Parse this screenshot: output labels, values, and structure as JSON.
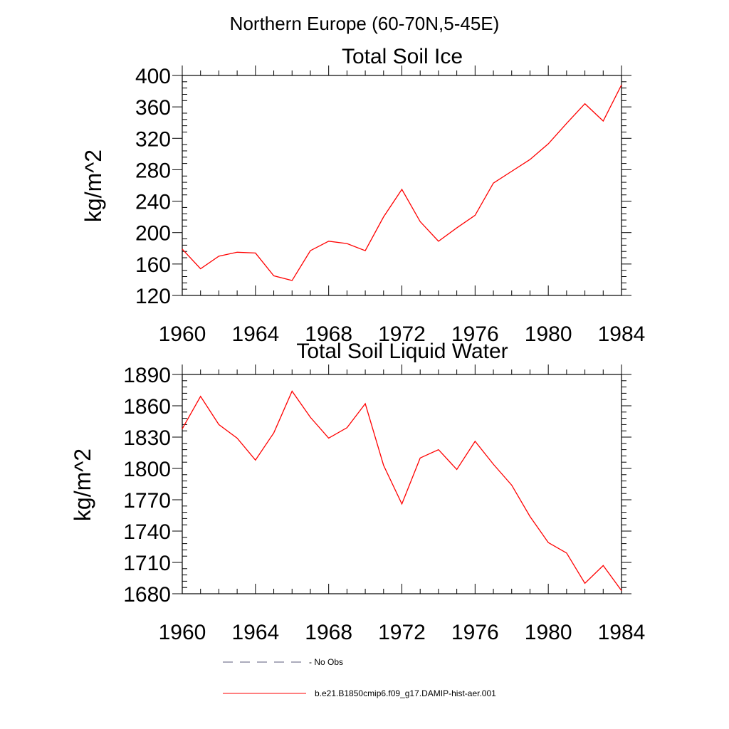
{
  "figure": {
    "suptitle": "Northern Europe (60-70N,5-45E)"
  },
  "chart_data": [
    {
      "type": "line",
      "title": "Total Soil Ice",
      "ylabel": "kg/m^2",
      "xlabel": "",
      "xlim": [
        1960,
        1984
      ],
      "ylim": [
        120,
        400
      ],
      "xticks": [
        1960,
        1964,
        1968,
        1972,
        1976,
        1980,
        1984
      ],
      "yticks": [
        120,
        160,
        200,
        240,
        280,
        320,
        360,
        400
      ],
      "grid": false,
      "series": [
        {
          "name": "b.e21.B1850cmip6.f09_g17.DAMIP-hist-aer.001",
          "color": "#ff0000",
          "x": [
            1960,
            1961,
            1962,
            1963,
            1964,
            1965,
            1966,
            1967,
            1968,
            1969,
            1970,
            1971,
            1972,
            1973,
            1974,
            1975,
            1976,
            1977,
            1978,
            1979,
            1980,
            1981,
            1982,
            1983,
            1984
          ],
          "values": [
            179,
            154,
            170,
            175,
            174,
            145,
            139,
            177,
            189,
            186,
            177,
            220,
            255,
            214,
            189,
            206,
            222,
            263,
            278,
            293,
            313,
            339,
            364,
            342,
            388
          ]
        }
      ]
    },
    {
      "type": "line",
      "title": "Total Soil Liquid Water",
      "ylabel": "kg/m^2",
      "xlabel": "",
      "xlim": [
        1960,
        1984
      ],
      "ylim": [
        1680,
        1890
      ],
      "xticks": [
        1960,
        1964,
        1968,
        1972,
        1976,
        1980,
        1984
      ],
      "yticks": [
        1680,
        1710,
        1740,
        1770,
        1800,
        1830,
        1860,
        1890
      ],
      "grid": false,
      "series": [
        {
          "name": "b.e21.B1850cmip6.f09_g17.DAMIP-hist-aer.001",
          "color": "#ff0000",
          "x": [
            1960,
            1961,
            1962,
            1963,
            1964,
            1965,
            1966,
            1967,
            1968,
            1969,
            1970,
            1971,
            1972,
            1973,
            1974,
            1975,
            1976,
            1977,
            1978,
            1979,
            1980,
            1981,
            1982,
            1983,
            1984
          ],
          "values": [
            1838,
            1869,
            1842,
            1829,
            1808,
            1834,
            1874,
            1849,
            1829,
            1839,
            1862,
            1803,
            1766,
            1810,
            1818,
            1799,
            1826,
            1804,
            1784,
            1754,
            1729,
            1719,
            1690,
            1707,
            1683
          ]
        }
      ]
    }
  ],
  "legend": [
    {
      "label": "- No Obs",
      "color": "#5a5a78",
      "style": "dashed"
    },
    {
      "label": "b.e21.B1850cmip6.f09_g17.DAMIP-hist-aer.001",
      "color": "#ff0000",
      "style": "solid"
    }
  ]
}
